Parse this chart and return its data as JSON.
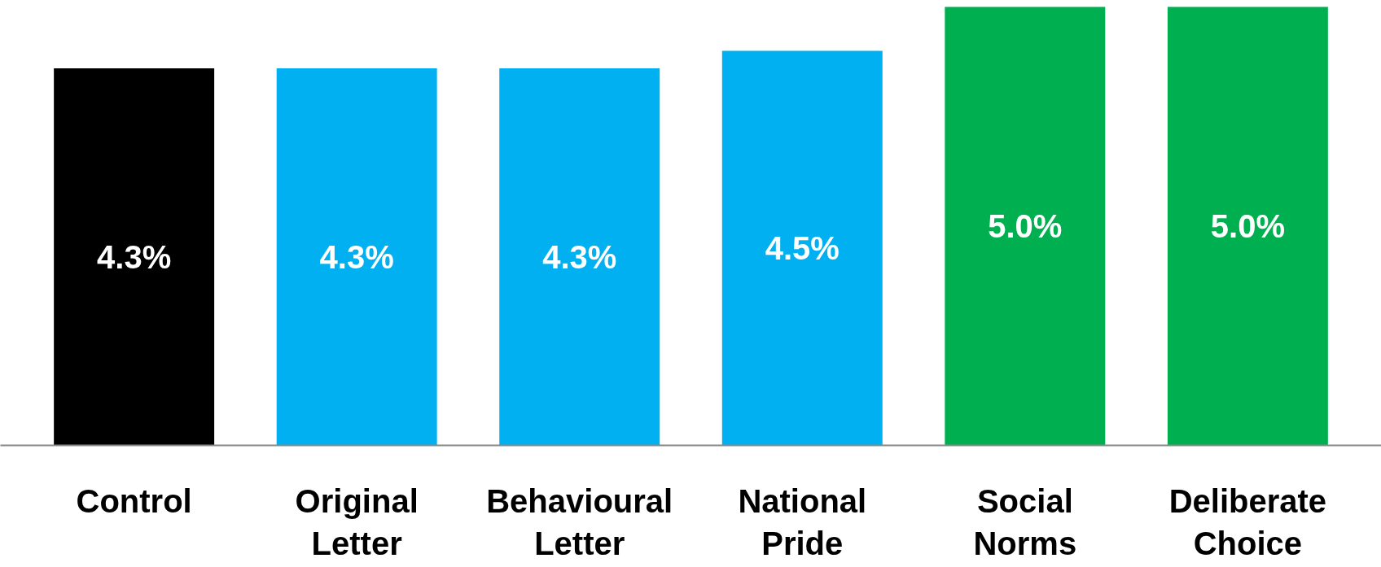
{
  "chart_data": {
    "type": "bar",
    "categories": [
      "Control",
      "Original Letter",
      "Behavioural Letter",
      "National Pride",
      "Social Norms",
      "Deliberate Choice"
    ],
    "values": [
      4.3,
      4.3,
      4.3,
      4.5,
      5.0,
      5.0
    ],
    "value_labels": [
      "4.3%",
      "4.3%",
      "4.3%",
      "4.5%",
      "5.0%",
      "5.0%"
    ],
    "colors": [
      "#000000",
      "#00b0f0",
      "#00b0f0",
      "#00b0f0",
      "#00b050",
      "#00b050"
    ]
  }
}
